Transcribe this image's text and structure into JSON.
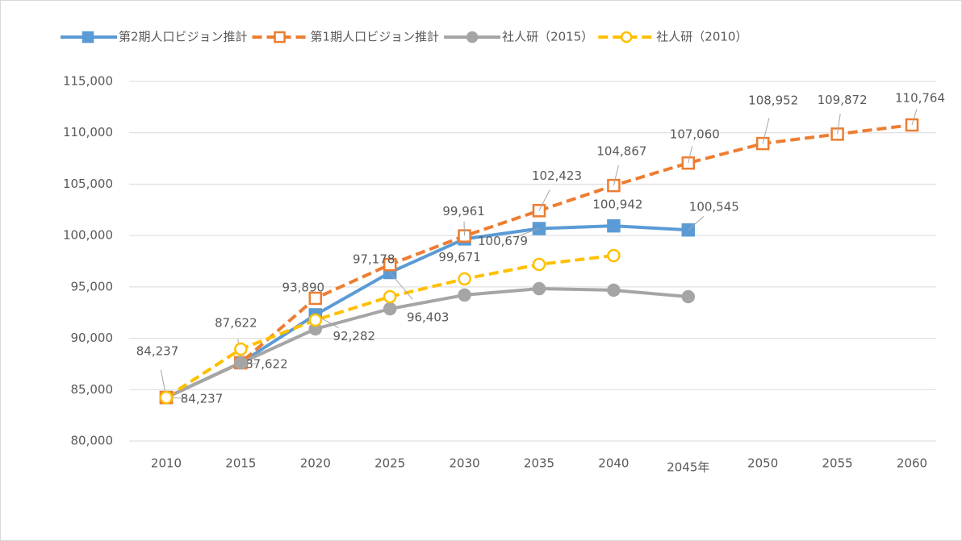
{
  "chart_data": {
    "type": "line",
    "categories": [
      "2010",
      "2015",
      "2020",
      "2025",
      "2030",
      "2035",
      "2040",
      "2045年",
      "2050",
      "2055",
      "2060"
    ],
    "series": [
      {
        "name": "第2期人口ビジョン推計",
        "color": "#5b9bd5",
        "marker": "square",
        "filled": true,
        "dashed": false,
        "values": [
          84237,
          87622,
          92282,
          96403,
          99671,
          100679,
          100942,
          100545,
          null,
          null,
          null
        ],
        "value_labels": [
          "84,237",
          "87,622",
          "92,282",
          "96,403",
          "99,671",
          "100,679",
          "100,942",
          "100,545",
          null,
          null,
          null
        ]
      },
      {
        "name": "第1期人口ビジョン推計",
        "color": "#ed7d31",
        "marker": "square",
        "filled": false,
        "dashed": true,
        "values": [
          84237,
          87622,
          93890,
          97178,
          99961,
          102423,
          104867,
          107060,
          108952,
          109872,
          110764
        ],
        "value_labels": [
          "84,237",
          "87,622",
          "93,890",
          "97,178",
          "99,961",
          "102,423",
          "104,867",
          "107,060",
          "108,952",
          "109,872",
          "110,764"
        ]
      },
      {
        "name": "社人研（2015）",
        "color": "#a5a5a5",
        "marker": "circle",
        "filled": true,
        "dashed": false,
        "values": [
          84237,
          87600,
          90910,
          92870,
          94210,
          94830,
          94680,
          94050,
          null,
          null,
          null
        ]
      },
      {
        "name": "社人研（2010）",
        "color": "#ffc000",
        "marker": "circle",
        "filled": false,
        "dashed": true,
        "values": [
          84237,
          88950,
          91770,
          94050,
          95780,
          97190,
          98050,
          null,
          null,
          null,
          null
        ]
      }
    ],
    "ylim": [
      80000,
      115000
    ],
    "yticks": [
      {
        "value": 80000,
        "label": "80,000"
      },
      {
        "value": 85000,
        "label": "85,000"
      },
      {
        "value": 90000,
        "label": "90,000"
      },
      {
        "value": 95000,
        "label": "95,000"
      },
      {
        "value": 100000,
        "label": "100,000"
      },
      {
        "value": 105000,
        "label": "105,000"
      },
      {
        "value": 110000,
        "label": "110,000"
      },
      {
        "value": 115000,
        "label": "115,000"
      }
    ],
    "grid": true,
    "legend": "top"
  }
}
